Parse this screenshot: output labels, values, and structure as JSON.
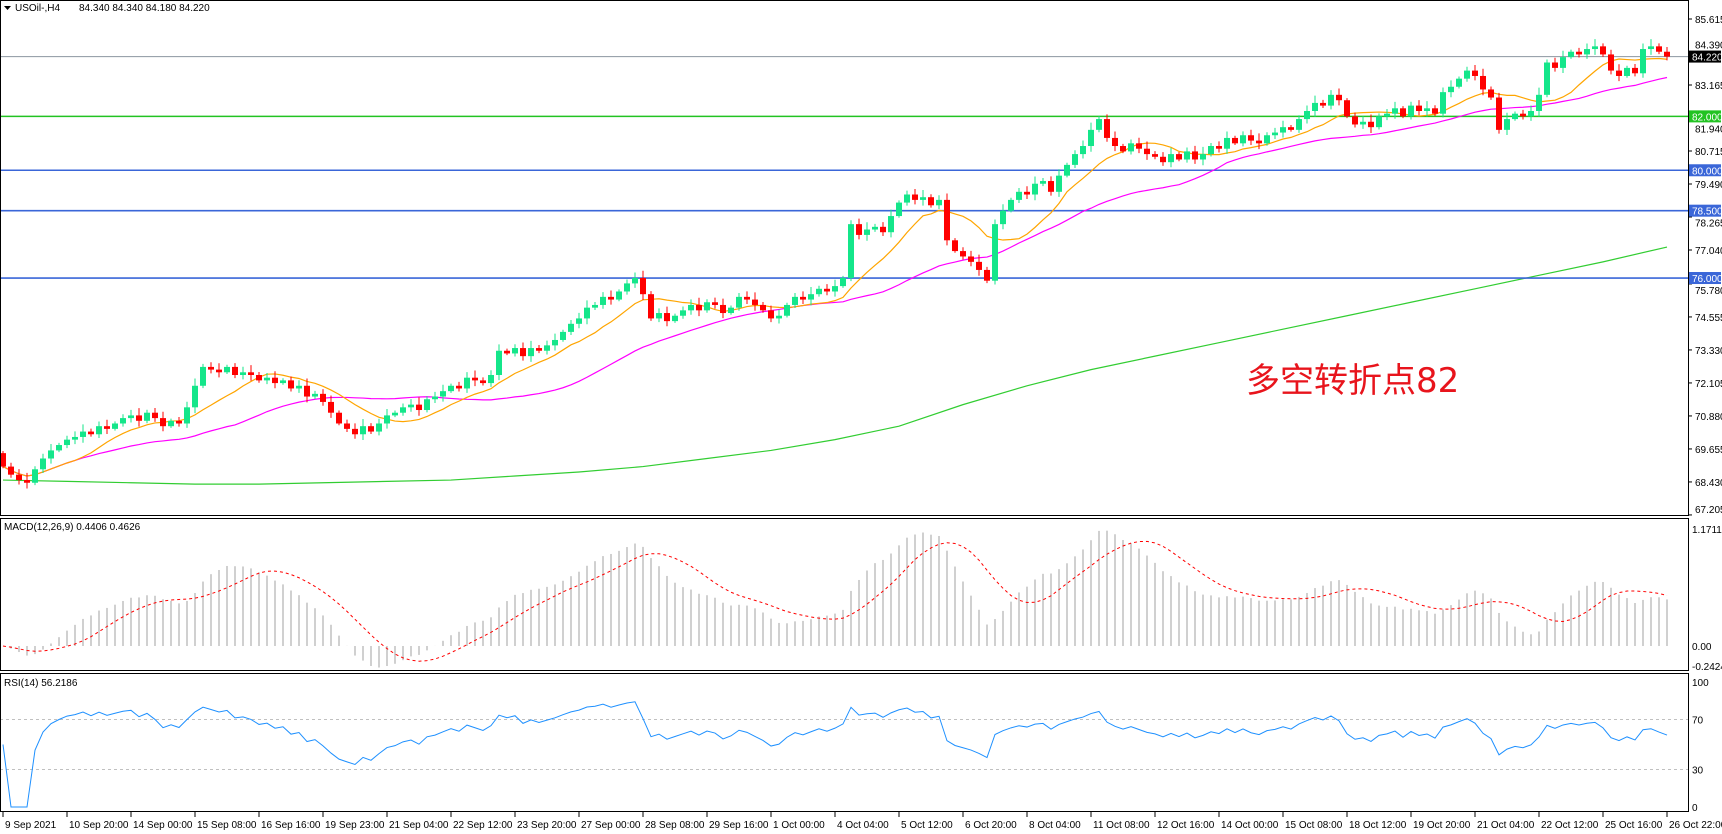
{
  "header": {
    "symbol": "USOil-,H4",
    "ohlc": "84.340 84.340 84.180 84.220"
  },
  "annotation": "多空转折点82",
  "colors": {
    "bull": "#14e68a",
    "bear": "#ff0000",
    "ma_fast": "#ffa500",
    "ma_mid": "#ff00ff",
    "ma_slow": "#32cd32",
    "level_blue": "#3a66d8",
    "level_green": "#22c322",
    "current": "#8c96a0",
    "macd_hist": "#c0c0c0",
    "macd_signal": "#ff0000",
    "rsi": "#1e90ff"
  },
  "chart_data": {
    "type": "candlestick",
    "symbol": "USOil-",
    "timeframe": "H4",
    "last_price": 84.22,
    "ylim": [
      67.205,
      85.615
    ],
    "y_ticks": [
      "85.615",
      "84.390",
      "83.165",
      "81.940",
      "80.715",
      "79.490",
      "78.265",
      "77.040",
      "75.780",
      "74.555",
      "73.330",
      "72.105",
      "70.880",
      "69.655",
      "68.430",
      "67.205"
    ],
    "x_ticks": [
      "9 Sep 2021",
      "10 Sep 20:00",
      "14 Sep 00:00",
      "15 Sep 08:00",
      "16 Sep 16:00",
      "19 Sep 23:00",
      "21 Sep 04:00",
      "22 Sep 12:00",
      "23 Sep 20:00",
      "27 Sep 00:00",
      "28 Sep 08:00",
      "29 Sep 16:00",
      "1 Oct 00:00",
      "4 Oct 04:00",
      "5 Oct 12:00",
      "6 Oct 20:00",
      "8 Oct 04:00",
      "11 Oct 08:00",
      "12 Oct 16:00",
      "14 Oct 00:00",
      "15 Oct 08:00",
      "18 Oct 12:00",
      "19 Oct 20:00",
      "21 Oct 04:00",
      "22 Oct 12:00",
      "25 Oct 16:00",
      "26 Oct 22:00"
    ],
    "bars_per_tick": 8,
    "first_open": 69.5,
    "close": [
      69.0,
      68.7,
      68.5,
      68.4,
      68.9,
      69.3,
      69.6,
      69.8,
      70.0,
      70.1,
      70.3,
      70.2,
      70.5,
      70.4,
      70.6,
      70.8,
      70.9,
      70.7,
      71.0,
      70.8,
      70.5,
      70.7,
      70.6,
      71.2,
      72.0,
      72.7,
      72.6,
      72.5,
      72.7,
      72.4,
      72.5,
      72.4,
      72.2,
      72.3,
      72.1,
      72.2,
      71.9,
      72.0,
      71.6,
      71.7,
      71.4,
      71.0,
      70.6,
      70.4,
      70.2,
      70.5,
      70.3,
      70.6,
      70.9,
      71.0,
      71.2,
      71.3,
      71.1,
      71.5,
      71.6,
      71.8,
      72.0,
      71.9,
      72.3,
      72.2,
      72.1,
      72.4,
      73.3,
      73.2,
      73.4,
      73.1,
      73.4,
      73.3,
      73.5,
      73.7,
      74.0,
      74.3,
      74.5,
      74.9,
      75.0,
      75.3,
      75.2,
      75.5,
      75.8,
      76.0,
      75.4,
      74.5,
      74.7,
      74.4,
      74.6,
      74.8,
      75.0,
      74.8,
      75.1,
      75.0,
      74.7,
      74.9,
      75.3,
      75.2,
      75.0,
      74.8,
      74.5,
      74.6,
      75.0,
      75.3,
      75.2,
      75.4,
      75.6,
      75.5,
      75.7,
      76.0,
      78.0,
      77.6,
      77.8,
      77.9,
      77.7,
      78.3,
      78.8,
      79.1,
      78.9,
      79.0,
      78.7,
      78.9,
      77.4,
      77.0,
      76.8,
      76.6,
      76.3,
      75.9,
      78.0,
      78.5,
      78.9,
      79.2,
      79.1,
      79.5,
      79.6,
      79.2,
      79.8,
      80.2,
      80.6,
      80.9,
      81.5,
      81.9,
      81.2,
      80.9,
      80.7,
      81.0,
      80.8,
      80.6,
      80.5,
      80.3,
      80.6,
      80.4,
      80.7,
      80.4,
      80.6,
      80.9,
      80.8,
      81.2,
      81.0,
      81.3,
      81.1,
      81.0,
      81.3,
      81.4,
      81.6,
      81.5,
      81.9,
      82.2,
      82.5,
      82.4,
      82.8,
      82.6,
      82.0,
      81.7,
      81.8,
      81.6,
      82.0,
      82.1,
      82.3,
      82.0,
      82.4,
      82.2,
      82.3,
      82.1,
      82.9,
      83.1,
      83.4,
      83.7,
      83.5,
      83.0,
      82.7,
      81.5,
      81.9,
      82.1,
      82.0,
      82.2,
      82.8,
      84.0,
      83.8,
      84.2,
      84.4,
      84.3,
      84.5,
      84.6,
      84.3,
      83.7,
      83.5,
      83.8,
      83.6,
      84.5,
      84.6,
      84.4,
      84.22
    ],
    "ma_slow_every_8_bars": [
      68.5,
      68.45,
      68.4,
      68.35,
      68.35,
      68.4,
      68.45,
      68.5,
      68.65,
      68.8,
      69.0,
      69.3,
      69.6,
      70.0,
      70.5,
      71.3,
      72.0,
      72.6,
      73.1,
      73.6,
      74.1,
      74.6,
      75.1,
      75.6,
      76.1,
      76.6,
      77.15
    ],
    "ma_fast_period": 10,
    "ma_mid_period": 30,
    "levels": [
      {
        "price": 82.0,
        "label": "82.000",
        "color": "green"
      },
      {
        "price": 80.0,
        "label": "80.000",
        "color": "blue"
      },
      {
        "price": 78.5,
        "label": "78.500",
        "color": "blue"
      },
      {
        "price": 76.0,
        "label": "76.000",
        "color": "blue"
      }
    ],
    "current_label": "84.220",
    "macd": {
      "label": "MACD(12,26,9) 0.4406 0.4626",
      "ticks": [
        "1.1711",
        "0.00",
        "-0.2424"
      ],
      "ylim": [
        -0.2424,
        1.1711
      ]
    },
    "rsi": {
      "label": "RSI(14) 56.2186",
      "period": 14,
      "ticks": [
        "100",
        "70",
        "30",
        "0"
      ],
      "levels": [
        70,
        30
      ],
      "ylim": [
        0,
        100
      ]
    }
  }
}
